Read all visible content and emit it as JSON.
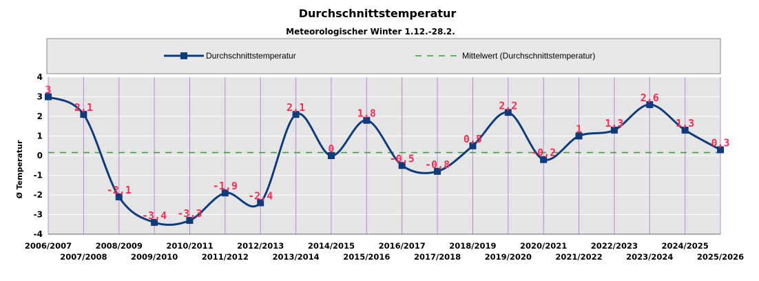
{
  "chart_data": {
    "type": "line",
    "title": "Durchschnittstemperatur",
    "subtitle": "Meteorologischer Winter 1.12.-28.2.",
    "xlabel": "",
    "ylabel": "Ø Temperatur",
    "ylim": [
      -4,
      4
    ],
    "yticks": [
      4,
      3,
      2,
      1,
      0,
      -1,
      -2,
      -3,
      -4
    ],
    "grid": true,
    "legend_position": "top",
    "categories": [
      "2006/2007",
      "2007/2008",
      "2008/2009",
      "2009/2010",
      "2010/2011",
      "2011/2012",
      "2012/2013",
      "2013/2014",
      "2014/2015",
      "2015/2016",
      "2016/2017",
      "2017/2018",
      "2018/2019",
      "2019/2020",
      "2020/2021",
      "2021/2022",
      "2022/2023",
      "2023/2024",
      "2024/2025",
      "2025/2026"
    ],
    "series": [
      {
        "name": "Durchschnittstemperatur",
        "values": [
          3,
          2.1,
          -2.1,
          -3.4,
          -3.3,
          -1.9,
          -2.4,
          2.1,
          0,
          1.8,
          -0.5,
          -0.8,
          0.5,
          2.2,
          -0.2,
          1,
          1.3,
          2.6,
          1.3,
          0.3
        ],
        "labels": [
          "3",
          "2,1",
          "-2,1",
          "-3,4",
          "-3,3",
          "-1,9",
          "-2,4",
          "2,1",
          "0",
          "1,8",
          "-0,5",
          "-0,8",
          "0,5",
          "2,2",
          "-0,2",
          "1",
          "1,3",
          "2,6",
          "1,3",
          "0,3"
        ],
        "color": "#0f3b7a"
      },
      {
        "name": "Mittelwert (Durchschnittstemperatur)",
        "value": 0.16,
        "color": "#3a9a3a",
        "style": "dashed"
      }
    ],
    "colors": {
      "plot_background": "#e5e5e5",
      "grid_vertical": "#b48cd2",
      "grid_horizontal": "#ffffff",
      "data_label": "#ff2d55",
      "legend_background": "#e8e8e8"
    }
  }
}
